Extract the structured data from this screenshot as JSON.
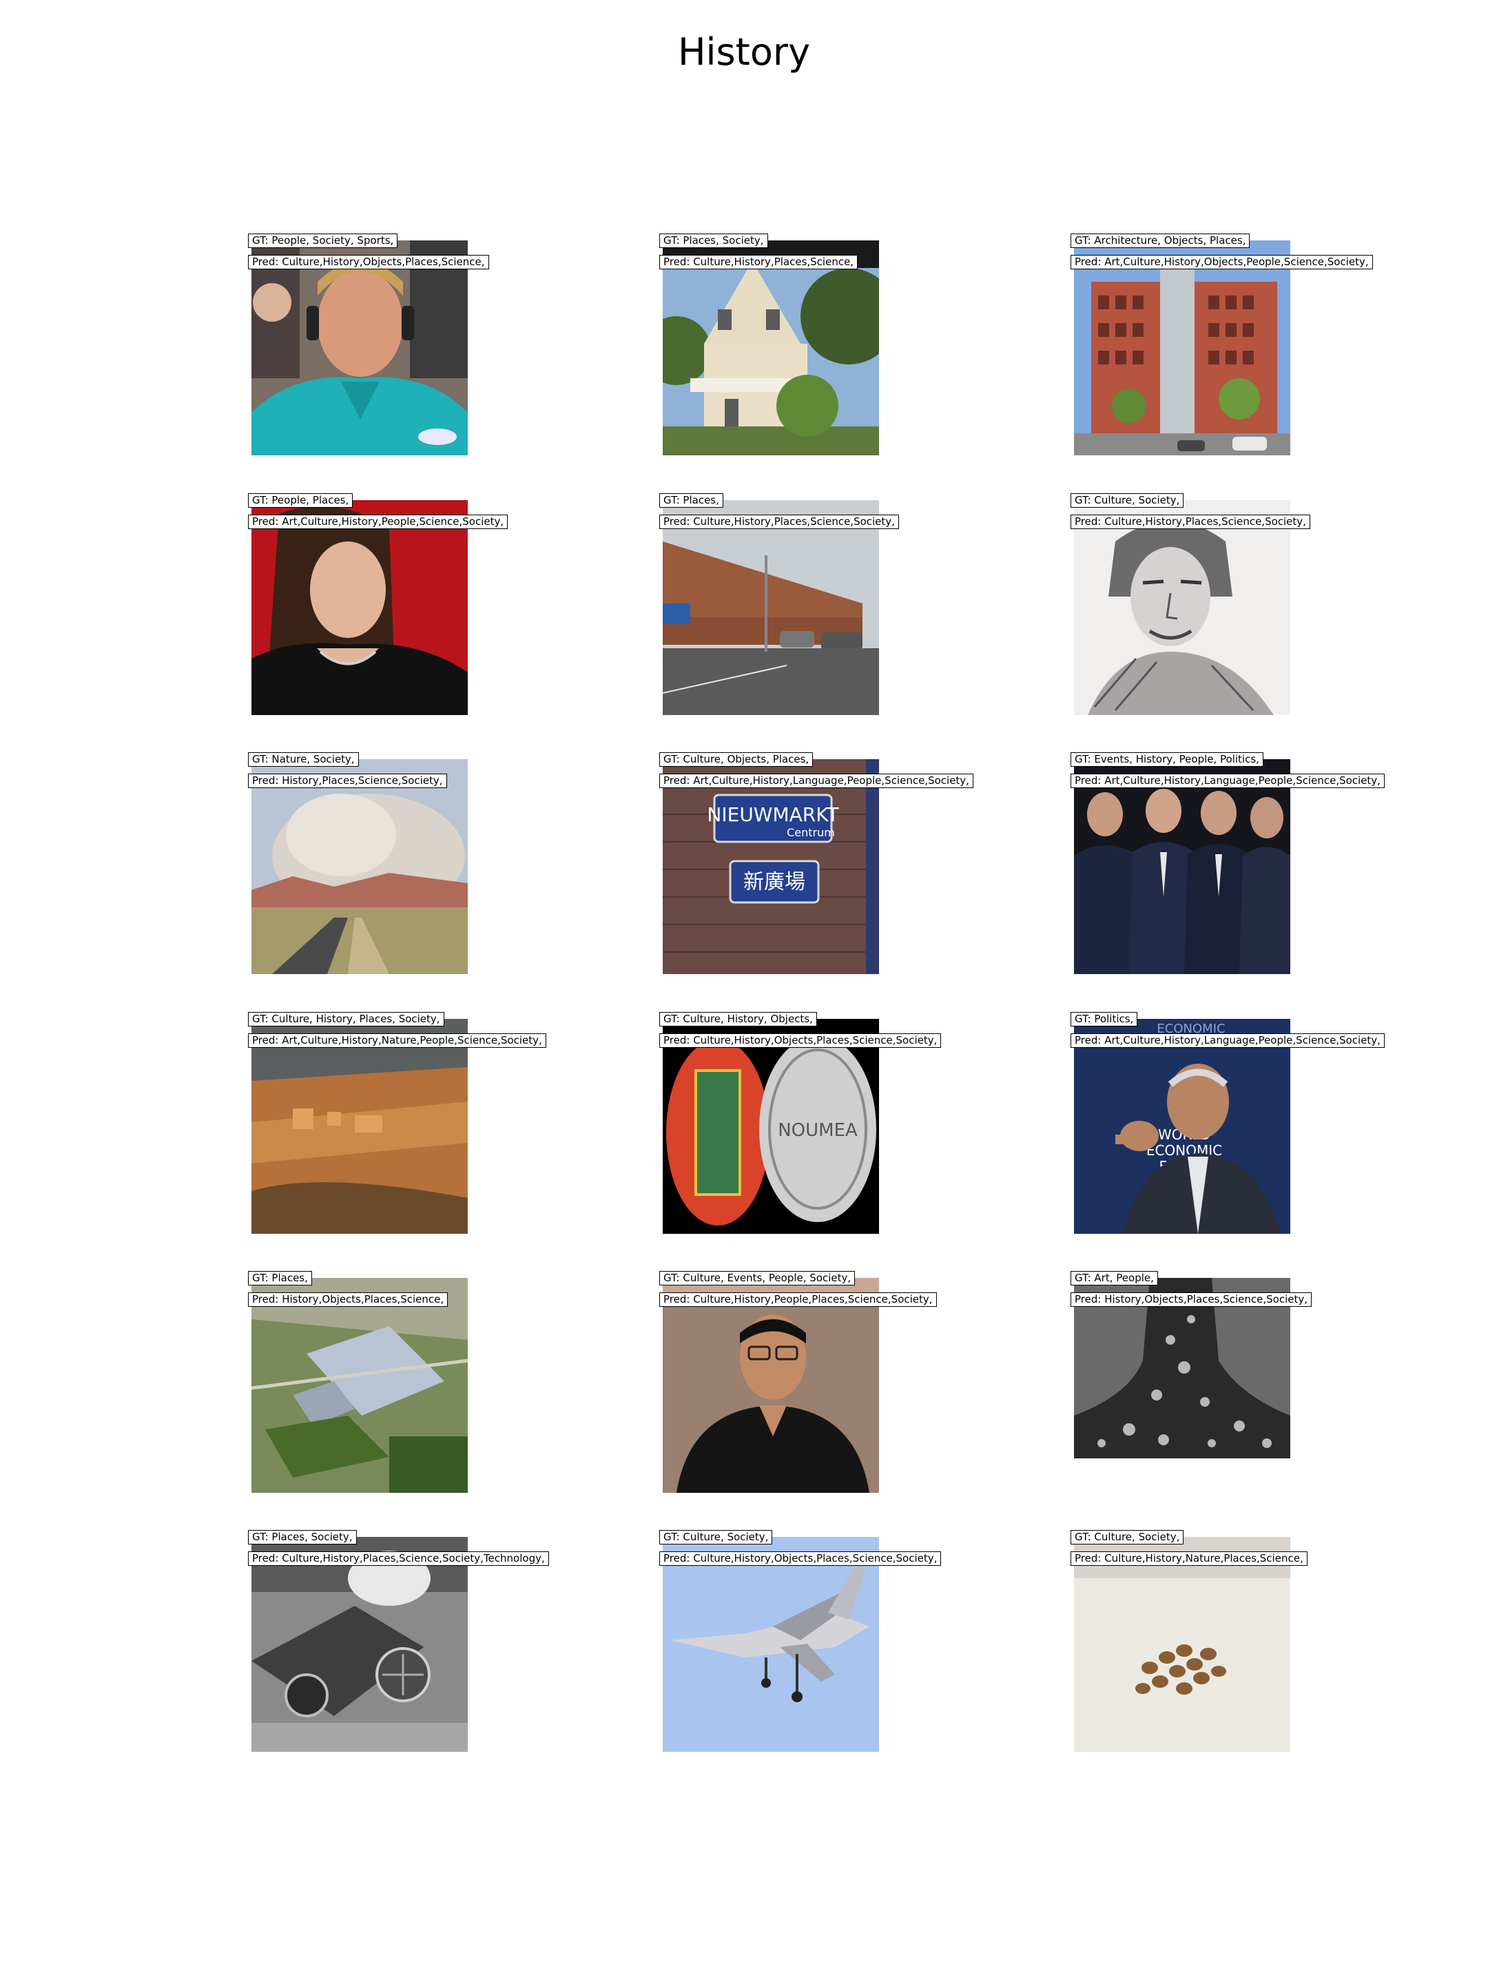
{
  "title": "History",
  "panels": [
    {
      "gt": "GT: People, Society, Sports,",
      "pred": "Pred: Culture,History,Objects,Places,Science,",
      "image": "man-with-headset-photo"
    },
    {
      "gt": "GT: Places, Society,",
      "pred": "Pred: Culture,History,Places,Science,",
      "image": "victorian-house-photo"
    },
    {
      "gt": "GT: Architecture, Objects, Places,",
      "pred": "Pred: Art,Culture,History,Objects,People,Science,Society,",
      "image": "brick-building-photo"
    },
    {
      "gt": "GT: People, Places,",
      "pred": "Pred: Art,Culture,History,People,Science,Society,",
      "image": "woman-portrait-photo"
    },
    {
      "gt": "GT: Places,",
      "pred": "Pred: Culture,History,Places,Science,Society,",
      "image": "walmart-store-photo"
    },
    {
      "gt": "GT: Culture, Society,",
      "pred": "Pred: Culture,History,Places,Science,Society,",
      "image": "pencil-sketch-portrait"
    },
    {
      "gt": "GT: Nature, Society,",
      "pred": "Pred: History,Places,Science,Society,",
      "image": "desert-storm-road-photo"
    },
    {
      "gt": "GT: Culture, Objects, Places,",
      "pred": "Pred: Art,Culture,History,Language,People,Science,Society,",
      "image": "street-sign-photo",
      "sign1": "NIEUWMARKT",
      "sign1b": "Centrum",
      "sign2": "新廣場"
    },
    {
      "gt": "GT: Events, History, People, Politics,",
      "pred": "Pred: Art,Culture,History,Language,People,Science,Society,",
      "image": "seated-officials-photo"
    },
    {
      "gt": "GT: Culture, History, Places, Society,",
      "pred": "Pred: Art,Culture,History,Nature,People,Science,Society,",
      "image": "ancient-ruins-aerial-photo"
    },
    {
      "gt": "GT: Culture, History, Objects,",
      "pred": "Pred: Culture,History,Objects,Places,Science,Society,",
      "image": "coins-photo",
      "coin_text": "NOUMEA"
    },
    {
      "gt": "GT: Politics,",
      "pred": "Pred: Art,Culture,History,Language,People,Science,Society,",
      "image": "speaker-forum-photo",
      "backdrop_text": "ECONOMIC",
      "podium_text1": "WORLD",
      "podium_text2": "ECONOMIC",
      "podium_text3": "FORUM"
    },
    {
      "gt": "GT: Places,",
      "pred": "Pred: History,Objects,Places,Science,",
      "image": "warehouse-aerial-photo"
    },
    {
      "gt": "GT: Culture, Events, People, Society,",
      "pred": "Pred: Culture,History,People,Places,Science,Society,",
      "image": "man-with-glasses-photo"
    },
    {
      "gt": "GT: Art, People,",
      "pred": "Pred: History,Objects,Places,Science,Society,",
      "image": "abstract-texture-photo"
    },
    {
      "gt": "GT: Places, Society,",
      "pred": "Pred: Culture,History,Places,Science,Society,Technology,",
      "image": "machinery-bw-photo"
    },
    {
      "gt": "GT: Culture, Society,",
      "pred": "Pred: Culture,History,Objects,Places,Science,Society,",
      "image": "fighter-jet-photo"
    },
    {
      "gt": "GT: Culture, Society,",
      "pred": "Pred: Culture,History,Nature,Places,Science,",
      "image": "seeds-photo"
    }
  ]
}
